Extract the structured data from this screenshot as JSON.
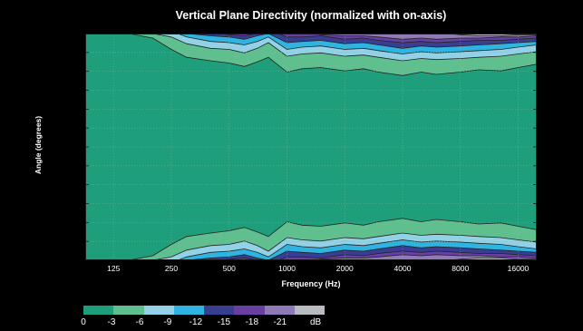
{
  "chart_data": {
    "type": "heatmap",
    "title": "Vertical Plane Directivity (normalized with on-axis)",
    "xlabel": "Frequency (Hz)",
    "ylabel": "Angle (degrees)",
    "x_scale": "log",
    "xlim": [
      89,
      20000
    ],
    "x_ticks": [
      {
        "value": 125,
        "label": "125"
      },
      {
        "value": 250,
        "label": "250"
      },
      {
        "value": 500,
        "label": "500"
      },
      {
        "value": 1000,
        "label": "1000"
      },
      {
        "value": 2000,
        "label": "2000"
      },
      {
        "value": 4000,
        "label": "4000"
      },
      {
        "value": 8000,
        "label": "8000"
      },
      {
        "value": 16000,
        "label": "16000"
      }
    ],
    "grid": true,
    "legend_position": "bottom-left",
    "levels": [
      {
        "label": "0",
        "color": "#1f9e7b"
      },
      {
        "label": "-3",
        "color": "#5fbf8f"
      },
      {
        "label": "-6",
        "color": "#93d1e6"
      },
      {
        "label": "-9",
        "color": "#2fb4e2"
      },
      {
        "label": "-12",
        "color": "#383f93"
      },
      {
        "label": "-15",
        "color": "#6a3fa3"
      },
      {
        "label": "-18",
        "color": "#8f7ab8"
      },
      {
        "label": "-21",
        "color": "#b8bcc0"
      }
    ],
    "legend_unit": "dB",
    "contours": [
      {
        "level": "-3",
        "x": [
          89,
          150,
          200,
          250,
          300,
          400,
          500,
          600,
          700,
          800,
          1000,
          1200,
          1500,
          2000,
          2500,
          3000,
          4000,
          5000,
          6000,
          8000,
          10000,
          13000,
          16000,
          20000
        ],
        "y": [
          1,
          1,
          0.96,
          0.86,
          0.79,
          0.76,
          0.74,
          0.71,
          0.75,
          0.79,
          0.66,
          0.69,
          0.7,
          0.67,
          0.69,
          0.66,
          0.63,
          0.66,
          0.64,
          0.66,
          0.68,
          0.67,
          0.7,
          0.73
        ]
      },
      {
        "level": "-6",
        "x": [
          89,
          200,
          250,
          300,
          400,
          500,
          600,
          700,
          800,
          1000,
          1200,
          1500,
          2000,
          2500,
          3000,
          4000,
          5000,
          6000,
          8000,
          10000,
          13000,
          16000,
          20000
        ],
        "y": [
          1,
          1,
          0.97,
          0.91,
          0.87,
          0.86,
          0.83,
          0.87,
          0.92,
          0.8,
          0.82,
          0.83,
          0.8,
          0.81,
          0.79,
          0.76,
          0.78,
          0.77,
          0.78,
          0.79,
          0.8,
          0.82,
          0.84
        ]
      },
      {
        "level": "-9",
        "x": [
          89,
          270,
          300,
          400,
          500,
          600,
          700,
          800,
          1000,
          1200,
          1500,
          2000,
          2500,
          3000,
          4000,
          5000,
          6000,
          8000,
          10000,
          13000,
          16000,
          20000
        ],
        "y": [
          1,
          1,
          0.97,
          0.93,
          0.92,
          0.9,
          0.93,
          0.97,
          0.86,
          0.88,
          0.89,
          0.86,
          0.87,
          0.85,
          0.82,
          0.84,
          0.83,
          0.84,
          0.85,
          0.86,
          0.88,
          0.9
        ]
      },
      {
        "level": "-12",
        "x": [
          89,
          300,
          400,
          500,
          600,
          700,
          800,
          1000,
          1200,
          1500,
          2000,
          2500,
          3000,
          4000,
          5000,
          6000,
          8000,
          10000,
          13000,
          16000,
          20000
        ],
        "y": [
          1,
          1,
          0.98,
          0.97,
          0.95,
          0.98,
          1,
          0.92,
          0.93,
          0.94,
          0.91,
          0.92,
          0.9,
          0.87,
          0.89,
          0.88,
          0.89,
          0.9,
          0.91,
          0.92,
          0.93
        ]
      },
      {
        "level": "-15",
        "x": [
          89,
          450,
          500,
          600,
          700,
          900,
          1000,
          1200,
          1500,
          2000,
          2500,
          3000,
          4000,
          5000,
          6000,
          8000,
          10000,
          13000,
          16000,
          20000
        ],
        "y": [
          1,
          1,
          0.99,
          0.98,
          1,
          1,
          0.97,
          0.97,
          0.98,
          0.95,
          0.96,
          0.94,
          0.92,
          0.93,
          0.92,
          0.93,
          0.94,
          0.94,
          0.95,
          0.96
        ]
      },
      {
        "level": "-18",
        "x": [
          89,
          1400,
          1500,
          2000,
          2500,
          3000,
          4000,
          5000,
          6000,
          8000,
          10000,
          13000,
          16000,
          20000
        ],
        "y": [
          1,
          1,
          0.99,
          0.98,
          0.98,
          0.97,
          0.95,
          0.96,
          0.95,
          0.96,
          0.96,
          0.97,
          0.97,
          0.98
        ]
      },
      {
        "level": "-21",
        "x": [
          89,
          7000,
          8000,
          10000,
          13000,
          16000,
          20000
        ],
        "y": [
          1,
          1,
          0.99,
          0.98,
          0.98,
          0.99,
          0.99
        ]
      }
    ]
  }
}
